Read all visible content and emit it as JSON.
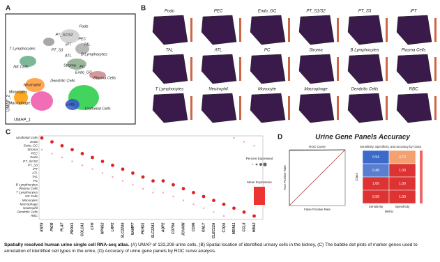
{
  "panel_a": {
    "label": "A",
    "clusters": [
      "Podo",
      "PT_S1/S2",
      "PEC",
      "TAL",
      "iPT",
      "T Lymphocytes",
      "PT_S3",
      "ATL",
      "B Lymphocytes",
      "NK Cells",
      "Stroma",
      "PC",
      "Endo_GC",
      "Plasma Cells",
      "Dendritic Cells",
      "Neutrophil",
      "Monocytes",
      "Macrophage",
      "Endo",
      "Urothelial Cells"
    ],
    "x_label": "UMAP_1",
    "y_label": "UMAP_2"
  },
  "panel_b": {
    "label": "B",
    "tiles": [
      "Podo",
      "PEC",
      "Endo_GC",
      "PT_S1/S2",
      "PT_S3",
      "iPT",
      "TAL",
      "ATL",
      "PC",
      "Stroma",
      "B Lymphocytes",
      "Plasma Cells",
      "T Lymphocytes",
      "Neutrophil",
      "Monocyte",
      "Macrophage",
      "Dendritic Cells",
      "RBC"
    ]
  },
  "panel_c": {
    "label": "C",
    "rows": [
      "Urothelial Cells",
      "Endo",
      "Endo_GC",
      "Stroma",
      "PEC",
      "Podo",
      "PT_S1/S2",
      "PT_S3",
      "iPT",
      "ATL",
      "TAL",
      "PC",
      "B Lymphocytes",
      "Plasma Cells",
      "T Lymphocytes",
      "NK Cells",
      "Monocytes",
      "Macrophage",
      "Neutrophil",
      "Dendritic Cells",
      "RBC"
    ],
    "genes": [
      "KRT8",
      "PIGR",
      "PLAT",
      "PROX1",
      "COL1A1",
      "CFH",
      "NPHS2",
      "LRP2",
      "SLC22A6",
      "NAMPT",
      "PKHD1",
      "SLC12A1",
      "AQP2",
      "CD79A",
      "JCHAIN",
      "CD96",
      "GNLY",
      "CLEC12A",
      "C1QA",
      "MS4A1",
      "CCL8",
      "HBA2"
    ],
    "legend_size": "Percent Expressed",
    "legend_color": "Mean Expression"
  },
  "panel_d": {
    "label": "D",
    "title": "Urine Gene Panels Accuracy",
    "roc_title": "ROC Curve",
    "roc_x": "False Positive Rate",
    "roc_y": "True Positive Rate",
    "heat_title": "Sensitivity, Specificity, and accuracy by Class",
    "columns": [
      "Sensitivity",
      "Specificity"
    ],
    "values": [
      [
        0.94,
        0.73
      ],
      [
        0.48,
        1.0
      ],
      [
        1.0,
        1.0
      ],
      [
        0.99,
        1.0
      ]
    ],
    "value_labels": [
      [
        "0.94",
        "0.73"
      ],
      [
        "0.48",
        "1.00"
      ],
      [
        "1.00",
        "1.00"
      ],
      [
        "0.99",
        "1.00"
      ]
    ],
    "x_label": "Metric",
    "y_label": "Class"
  },
  "caption": {
    "bold": "Spatially resolved human urine single cell RNA-seq atlas.",
    "text": "(A) UMAP of 133,208 urine cells, (B) Spatial location of identified urinary cells in the kidney, (C) The bubble dot plots of marker genes used to annotation of identified cell types in the urine, (D) Accuracy of urine gene panels by ROC curve analysis."
  }
}
